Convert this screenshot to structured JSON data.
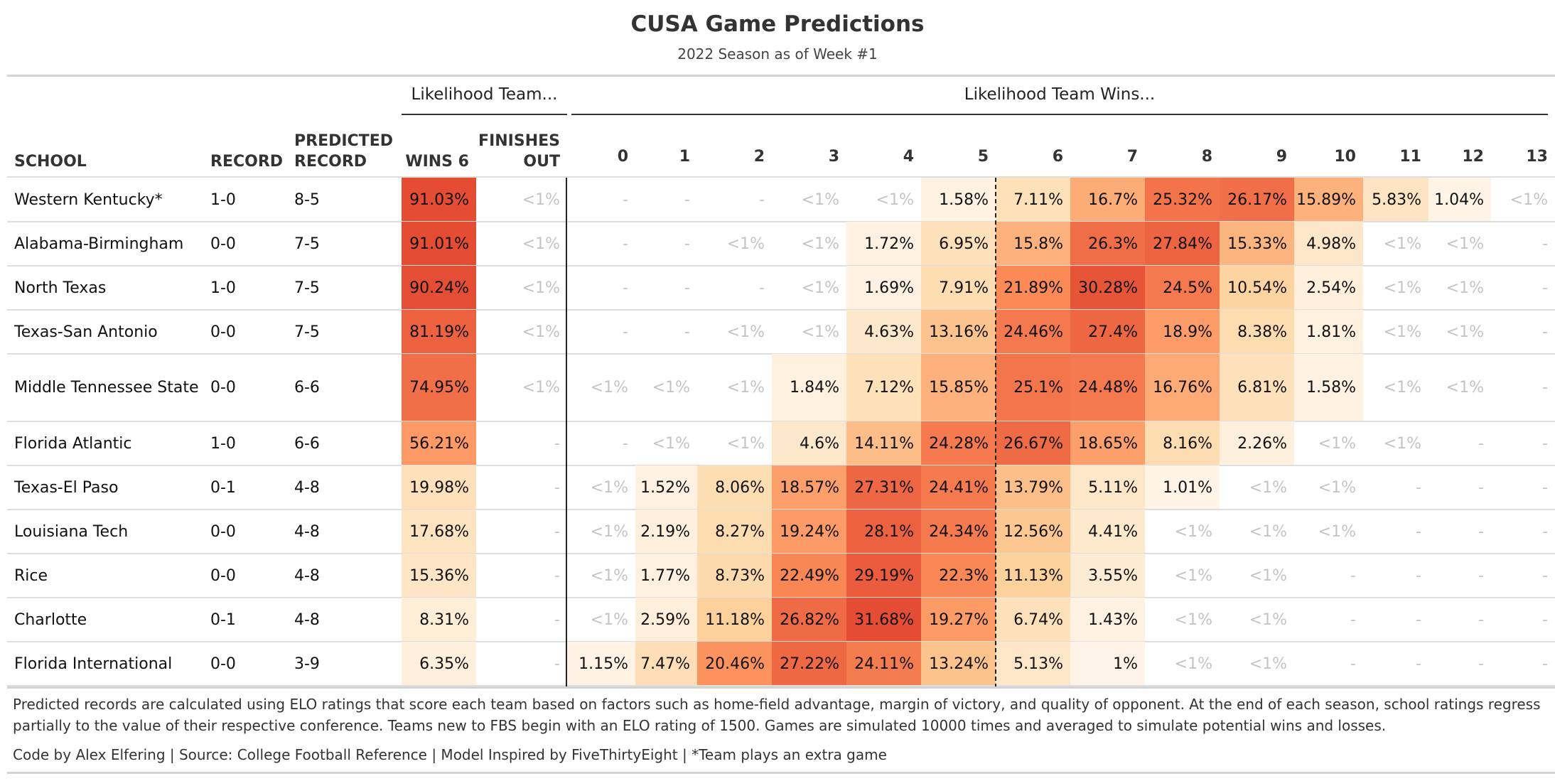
{
  "title": "CUSA Game Predictions",
  "subtitle": "2022 Season as of Week #1",
  "spanners": {
    "likelihood_team": "Likelihood Team...",
    "likelihood_wins": "Likelihood Team Wins..."
  },
  "columns": {
    "school": "SCHOOL",
    "record": "RECORD",
    "predicted_record": "PREDICTED\nRECORD",
    "wins6": "WINS 6",
    "finishes_out": "FINISHES\nOUT",
    "wins": [
      "0",
      "1",
      "2",
      "3",
      "4",
      "5",
      "6",
      "7",
      "8",
      "9",
      "10",
      "11",
      "12",
      "13"
    ]
  },
  "colors": {
    "heat_low": "#fff5eb",
    "heat_high": "#e34a33",
    "muted_text": "#c4c4c4"
  },
  "chart_data": {
    "type": "table",
    "title": "CUSA Game Predictions",
    "subtitle": "2022 Season as of Week #1",
    "rows": [
      {
        "school": "Western Kentucky*",
        "record": "1-0",
        "predicted": "8-5",
        "wins6": "91.03%",
        "finishes": "<1%",
        "dist": [
          "-",
          "-",
          "-",
          "<1%",
          "<1%",
          "1.58%",
          "7.11%",
          "16.7%",
          "25.32%",
          "26.17%",
          "15.89%",
          "5.83%",
          "1.04%",
          "<1%"
        ]
      },
      {
        "school": "Alabama-Birmingham",
        "record": "0-0",
        "predicted": "7-5",
        "wins6": "91.01%",
        "finishes": "<1%",
        "dist": [
          "-",
          "-",
          "<1%",
          "<1%",
          "1.72%",
          "6.95%",
          "15.8%",
          "26.3%",
          "27.84%",
          "15.33%",
          "4.98%",
          "<1%",
          "<1%",
          "-"
        ]
      },
      {
        "school": "North Texas",
        "record": "1-0",
        "predicted": "7-5",
        "wins6": "90.24%",
        "finishes": "<1%",
        "dist": [
          "-",
          "-",
          "-",
          "<1%",
          "1.69%",
          "7.91%",
          "21.89%",
          "30.28%",
          "24.5%",
          "10.54%",
          "2.54%",
          "<1%",
          "<1%",
          "-"
        ]
      },
      {
        "school": "Texas-San Antonio",
        "record": "0-0",
        "predicted": "7-5",
        "wins6": "81.19%",
        "finishes": "<1%",
        "dist": [
          "-",
          "-",
          "<1%",
          "<1%",
          "4.63%",
          "13.16%",
          "24.46%",
          "27.4%",
          "18.9%",
          "8.38%",
          "1.81%",
          "<1%",
          "<1%",
          "-"
        ]
      },
      {
        "school": "Middle Tennessee State",
        "record": "0-0",
        "predicted": "6-6",
        "wins6": "74.95%",
        "finishes": "<1%",
        "dist": [
          "<1%",
          "<1%",
          "<1%",
          "1.84%",
          "7.12%",
          "15.85%",
          "25.1%",
          "24.48%",
          "16.76%",
          "6.81%",
          "1.58%",
          "<1%",
          "<1%",
          "-"
        ]
      },
      {
        "school": "Florida Atlantic",
        "record": "1-0",
        "predicted": "6-6",
        "wins6": "56.21%",
        "finishes": "-",
        "dist": [
          "-",
          "<1%",
          "<1%",
          "4.6%",
          "14.11%",
          "24.28%",
          "26.67%",
          "18.65%",
          "8.16%",
          "2.26%",
          "<1%",
          "<1%",
          "-",
          "-"
        ]
      },
      {
        "school": "Texas-El Paso",
        "record": "0-1",
        "predicted": "4-8",
        "wins6": "19.98%",
        "finishes": "-",
        "dist": [
          "<1%",
          "1.52%",
          "8.06%",
          "18.57%",
          "27.31%",
          "24.41%",
          "13.79%",
          "5.11%",
          "1.01%",
          "<1%",
          "<1%",
          "-",
          "-",
          "-"
        ]
      },
      {
        "school": "Louisiana Tech",
        "record": "0-0",
        "predicted": "4-8",
        "wins6": "17.68%",
        "finishes": "-",
        "dist": [
          "<1%",
          "2.19%",
          "8.27%",
          "19.24%",
          "28.1%",
          "24.34%",
          "12.56%",
          "4.41%",
          "<1%",
          "<1%",
          "<1%",
          "-",
          "-",
          "-"
        ]
      },
      {
        "school": "Rice",
        "record": "0-0",
        "predicted": "4-8",
        "wins6": "15.36%",
        "finishes": "-",
        "dist": [
          "<1%",
          "1.77%",
          "8.73%",
          "22.49%",
          "29.19%",
          "22.3%",
          "11.13%",
          "3.55%",
          "<1%",
          "<1%",
          "-",
          "-",
          "-",
          "-"
        ]
      },
      {
        "school": "Charlotte",
        "record": "0-1",
        "predicted": "4-8",
        "wins6": "8.31%",
        "finishes": "-",
        "dist": [
          "<1%",
          "2.59%",
          "11.18%",
          "26.82%",
          "31.68%",
          "19.27%",
          "6.74%",
          "1.43%",
          "<1%",
          "<1%",
          "-",
          "-",
          "-",
          "-"
        ]
      },
      {
        "school": "Florida International",
        "record": "0-0",
        "predicted": "3-9",
        "wins6": "6.35%",
        "finishes": "-",
        "dist": [
          "1.15%",
          "7.47%",
          "20.46%",
          "27.22%",
          "24.11%",
          "13.24%",
          "5.13%",
          "1%",
          "<1%",
          "<1%",
          "-",
          "-",
          "-",
          "-"
        ]
      }
    ]
  },
  "footnote": "Predicted records are calculated using ELO ratings that score each team based on factors such as home-field advantage, margin of victory, and quality of opponent. At the end of each season, school ratings regress partially to the value of their respective conference. Teams new to FBS begin with an ELO rating of 1500. Games are simulated 10000 times and averaged to simulate potential wins and losses.",
  "credit": "Code by Alex Elfering | Source: College Football Reference | Model Inspired by FiveThirtyEight | *Team plays an extra game"
}
